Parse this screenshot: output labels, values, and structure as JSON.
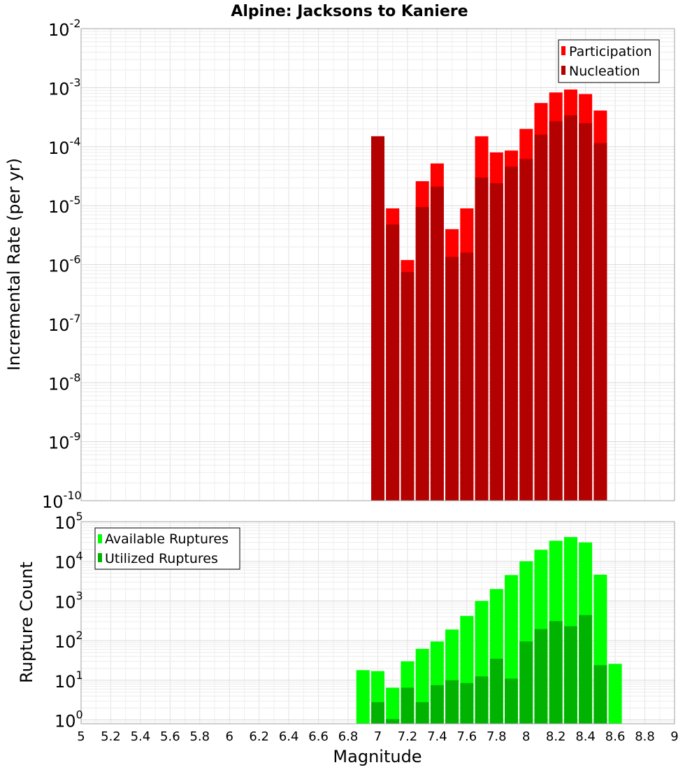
{
  "chart_data": [
    {
      "type": "bar",
      "title": "Alpine: Jacksons to Kaniere",
      "xlabel": "",
      "ylabel": "Incremental Rate (per yr)",
      "yscale": "log",
      "xlim": [
        5,
        9
      ],
      "ylim": [
        1e-10,
        0.01
      ],
      "ytick_exponents": [
        -10,
        -9,
        -8,
        -7,
        -6,
        -5,
        -4,
        -3,
        -2
      ],
      "grid": true,
      "legend_position": "top-right",
      "series": [
        {
          "name": "Participation",
          "color": "#ff0000",
          "x": [
            7.0,
            7.1,
            7.2,
            7.3,
            7.4,
            7.5,
            7.6,
            7.7,
            7.8,
            7.9,
            8.0,
            8.1,
            8.2,
            8.3,
            8.4,
            8.5
          ],
          "values": [
            0.00015,
            9e-06,
            1.2e-06,
            2.6e-05,
            5.2e-05,
            4e-06,
            9e-06,
            0.00015,
            8e-05,
            8.6e-05,
            0.0002,
            0.00055,
            0.00083,
            0.00093,
            0.00078,
            0.00041
          ]
        },
        {
          "name": "Nucleation",
          "color": "#b30000",
          "x": [
            7.0,
            7.1,
            7.2,
            7.3,
            7.4,
            7.5,
            7.6,
            7.7,
            7.8,
            7.9,
            8.0,
            8.1,
            8.2,
            8.3,
            8.4,
            8.5
          ],
          "values": [
            0.00015,
            4.8e-06,
            7.5e-07,
            9.5e-06,
            2.1e-05,
            1.35e-06,
            1.6e-06,
            3e-05,
            2.4e-05,
            4.6e-05,
            6.2e-05,
            0.00016,
            0.00027,
            0.00034,
            0.00025,
            0.000115
          ]
        }
      ]
    },
    {
      "type": "bar",
      "title": "",
      "xlabel": "Magnitude",
      "ylabel": "Rupture Count",
      "yscale": "log",
      "xlim": [
        5,
        9
      ],
      "ylim": [
        0.8,
        100000
      ],
      "ytick_exponents": [
        0,
        1,
        2,
        3,
        4,
        5
      ],
      "xticks": [
        "5",
        "5.2",
        "5.4",
        "5.6",
        "5.8",
        "6",
        "6.2",
        "6.4",
        "6.6",
        "6.8",
        "7",
        "7.2",
        "7.4",
        "7.6",
        "7.8",
        "8",
        "8.2",
        "8.4",
        "8.6",
        "8.8",
        "9"
      ],
      "grid": true,
      "legend_position": "top-left",
      "series": [
        {
          "name": "Available Ruptures",
          "color": "#00ff00",
          "x": [
            6.9,
            7.0,
            7.1,
            7.2,
            7.3,
            7.4,
            7.5,
            7.6,
            7.7,
            7.8,
            7.9,
            8.0,
            8.1,
            8.2,
            8.3,
            8.4,
            8.5,
            8.6
          ],
          "values": [
            18,
            17,
            6.5,
            30,
            62,
            95,
            190,
            420,
            1000,
            2000,
            4500,
            10000,
            19500,
            33000,
            41000,
            30000,
            4600,
            26
          ]
        },
        {
          "name": "Utilized Ruptures",
          "color": "#00b300",
          "x": [
            7.0,
            7.1,
            7.2,
            7.3,
            7.4,
            7.5,
            7.6,
            7.7,
            7.8,
            7.9,
            8.0,
            8.1,
            8.2,
            8.3,
            8.4,
            8.5
          ],
          "values": [
            2.8,
            1.05,
            6.5,
            2.8,
            7.5,
            10,
            8.5,
            12.5,
            35,
            11,
            95,
            195,
            310,
            230,
            440,
            24
          ]
        }
      ]
    }
  ]
}
